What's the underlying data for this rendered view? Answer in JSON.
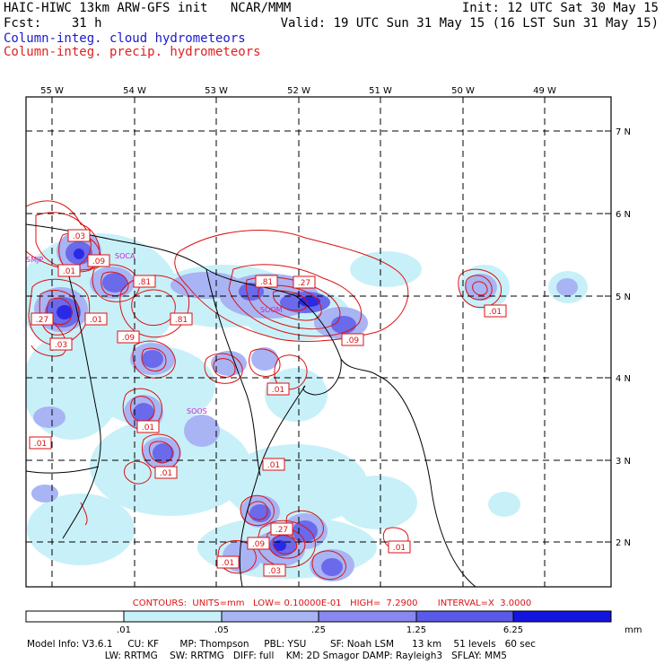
{
  "header": {
    "line1_left": "HAIC-HIWC 13km ARW-GFS init   NCAR/MMM",
    "line1_right": "Init: 12 UTC Sat 30 May 15",
    "line2_left": "Fcst:    31 h",
    "line2_right": "Valid: 19 UTC Sun 31 May 15 (16 LST Sun 31 May 15)",
    "line3": "Column-integ. cloud hydrometeors",
    "line4": "Column-integ. precip. hydrometeors"
  },
  "map": {
    "lon_labels": [
      "55 W",
      "54 W",
      "53 W",
      "52 W",
      "51 W",
      "50 W",
      "49 W"
    ],
    "lat_labels": [
      "7 N",
      "6 N",
      "5 N",
      "4 N",
      "3 N",
      "2 N"
    ],
    "contour_labels": [
      ".03",
      ".09",
      ".01",
      ".81",
      ".81",
      ".27",
      ".27",
      ".01",
      ".81",
      ".09",
      ".03",
      ".09",
      ".01",
      ".01",
      ".01",
      ".01",
      ".01",
      ".01",
      ".27",
      ".09",
      ".01",
      ".03",
      ".01"
    ],
    "station_labels": [
      "SMJP",
      "SOCA",
      "SOOS",
      "SOOM"
    ]
  },
  "legend": {
    "contours": "CONTOURS:  UNITS=mm   LOW= 0.10000E-01   HIGH=  7.2900       INTERVAL=X  3.0000",
    "colorbar_labels": [
      ".01",
      ".05",
      ".25",
      "1.25",
      "6.25"
    ],
    "units": "mm",
    "colors": [
      "#ffffff",
      "#c8f0f8",
      "#a8b4f4",
      "#8888ee",
      "#5a5ae8",
      "#1414e0"
    ]
  },
  "model_info": {
    "line1": "Model Info: V3.6.1     CU: KF       MP: Thompson     PBL: YSU        SF: Noah LSM      13 km    51 levels   60 sec",
    "line2": "                          LW: RRTMG    SW: RRTMG   DIFF: full    KM: 2D Smagor DAMP: Rayleigh3   SFLAY: MM5"
  },
  "colors": {
    "cloud": "#1a1acc",
    "precip": "#dd2222",
    "grid": "#000000"
  }
}
